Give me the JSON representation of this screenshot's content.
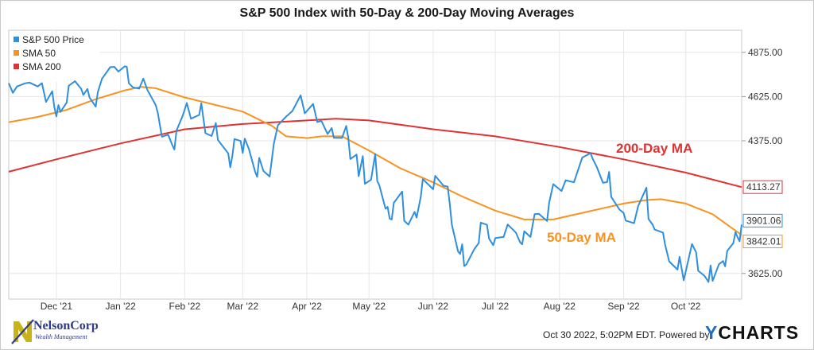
{
  "title": "S&P 500 Index with 50-Day & 200-Day Moving Averages",
  "footer": {
    "timestamp": "Oct 30 2022, 5:02PM EDT.",
    "powered_by": "Powered by",
    "brand_y": "Y",
    "brand_rest": "CHARTS"
  },
  "logo": {
    "name": "NelsonCorp",
    "subtitle": "Wealth Management",
    "icon": "n-logo-icon"
  },
  "chart_data": {
    "type": "line",
    "title": "S&P 500 Index with 50-Day & 200-Day Moving Averages",
    "xlabel": "",
    "ylabel": "",
    "x_range": [
      "2021-11-08",
      "2022-10-28"
    ],
    "ylim": [
      3480,
      5000
    ],
    "y_ticks": [
      3625,
      4375,
      4625,
      4875
    ],
    "y_tick_labels": [
      "3625.00",
      "4375.00",
      "4625.00",
      "4875.00"
    ],
    "x_ticks": [
      {
        "date": "2021-12-01",
        "label": "Dec '21"
      },
      {
        "date": "2022-01-01",
        "label": "Jan '22"
      },
      {
        "date": "2022-02-01",
        "label": "Feb '22"
      },
      {
        "date": "2022-03-01",
        "label": "Mar '22"
      },
      {
        "date": "2022-04-01",
        "label": "Apr '22"
      },
      {
        "date": "2022-05-01",
        "label": "May '22"
      },
      {
        "date": "2022-06-01",
        "label": "Jun '22"
      },
      {
        "date": "2022-07-01",
        "label": "Jul '22"
      },
      {
        "date": "2022-08-01",
        "label": "Aug '22"
      },
      {
        "date": "2022-09-01",
        "label": "Sep '22"
      },
      {
        "date": "2022-10-01",
        "label": "Oct '22"
      }
    ],
    "grid": true,
    "legend_position": "top-left",
    "series": [
      {
        "name": "S&P 500 Price",
        "color": "#2f8fdf",
        "end_label": "3901.06",
        "points": [
          [
            "2021-11-08",
            4701
          ],
          [
            "2021-11-10",
            4646
          ],
          [
            "2021-11-12",
            4682
          ],
          [
            "2021-11-16",
            4700
          ],
          [
            "2021-11-18",
            4704
          ],
          [
            "2021-11-22",
            4682
          ],
          [
            "2021-11-24",
            4701
          ],
          [
            "2021-11-26",
            4595
          ],
          [
            "2021-11-29",
            4655
          ],
          [
            "2021-11-30",
            4567
          ],
          [
            "2021-12-01",
            4513
          ],
          [
            "2021-12-02",
            4577
          ],
          [
            "2021-12-03",
            4538
          ],
          [
            "2021-12-06",
            4591
          ],
          [
            "2021-12-07",
            4686
          ],
          [
            "2021-12-10",
            4712
          ],
          [
            "2021-12-13",
            4668
          ],
          [
            "2021-12-14",
            4634
          ],
          [
            "2021-12-16",
            4668
          ],
          [
            "2021-12-17",
            4620
          ],
          [
            "2021-12-20",
            4568
          ],
          [
            "2021-12-21",
            4649
          ],
          [
            "2021-12-23",
            4725
          ],
          [
            "2021-12-27",
            4791
          ],
          [
            "2021-12-29",
            4793
          ],
          [
            "2021-12-31",
            4766
          ],
          [
            "2022-01-03",
            4796
          ],
          [
            "2022-01-04",
            4793
          ],
          [
            "2022-01-05",
            4700
          ],
          [
            "2022-01-07",
            4677
          ],
          [
            "2022-01-10",
            4670
          ],
          [
            "2022-01-12",
            4726
          ],
          [
            "2022-01-14",
            4662
          ],
          [
            "2022-01-18",
            4577
          ],
          [
            "2022-01-19",
            4533
          ],
          [
            "2022-01-21",
            4398
          ],
          [
            "2022-01-24",
            4410
          ],
          [
            "2022-01-26",
            4350
          ],
          [
            "2022-01-27",
            4326
          ],
          [
            "2022-01-28",
            4432
          ],
          [
            "2022-01-31",
            4516
          ],
          [
            "2022-02-02",
            4589
          ],
          [
            "2022-02-04",
            4500
          ],
          [
            "2022-02-08",
            4521
          ],
          [
            "2022-02-09",
            4587
          ],
          [
            "2022-02-10",
            4504
          ],
          [
            "2022-02-11",
            4418
          ],
          [
            "2022-02-14",
            4402
          ],
          [
            "2022-02-16",
            4475
          ],
          [
            "2022-02-17",
            4380
          ],
          [
            "2022-02-22",
            4304
          ],
          [
            "2022-02-23",
            4225
          ],
          [
            "2022-02-24",
            4289
          ],
          [
            "2022-02-25",
            4385
          ],
          [
            "2022-02-28",
            4374
          ],
          [
            "2022-03-01",
            4306
          ],
          [
            "2022-03-02",
            4387
          ],
          [
            "2022-03-04",
            4329
          ],
          [
            "2022-03-07",
            4201
          ],
          [
            "2022-03-08",
            4171
          ],
          [
            "2022-03-09",
            4278
          ],
          [
            "2022-03-11",
            4204
          ],
          [
            "2022-03-14",
            4173
          ],
          [
            "2022-03-15",
            4262
          ],
          [
            "2022-03-16",
            4357
          ],
          [
            "2022-03-18",
            4463
          ],
          [
            "2022-03-22",
            4512
          ],
          [
            "2022-03-25",
            4543
          ],
          [
            "2022-03-29",
            4632
          ],
          [
            "2022-03-31",
            4530
          ],
          [
            "2022-04-04",
            4583
          ],
          [
            "2022-04-06",
            4481
          ],
          [
            "2022-04-08",
            4488
          ],
          [
            "2022-04-11",
            4413
          ],
          [
            "2022-04-13",
            4447
          ],
          [
            "2022-04-14",
            4392
          ],
          [
            "2022-04-18",
            4391
          ],
          [
            "2022-04-20",
            4459
          ],
          [
            "2022-04-21",
            4394
          ],
          [
            "2022-04-22",
            4272
          ],
          [
            "2022-04-25",
            4297
          ],
          [
            "2022-04-26",
            4175
          ],
          [
            "2022-04-28",
            4288
          ],
          [
            "2022-04-29",
            4132
          ],
          [
            "2022-05-02",
            4155
          ],
          [
            "2022-05-04",
            4300
          ],
          [
            "2022-05-05",
            4147
          ],
          [
            "2022-05-06",
            4123
          ],
          [
            "2022-05-09",
            3991
          ],
          [
            "2022-05-10",
            4001
          ],
          [
            "2022-05-11",
            3935
          ],
          [
            "2022-05-12",
            3930
          ],
          [
            "2022-05-13",
            4024
          ],
          [
            "2022-05-17",
            4088
          ],
          [
            "2022-05-18",
            3923
          ],
          [
            "2022-05-20",
            3901
          ],
          [
            "2022-05-23",
            3973
          ],
          [
            "2022-05-24",
            3941
          ],
          [
            "2022-05-26",
            4058
          ],
          [
            "2022-05-27",
            4158
          ],
          [
            "2022-06-01",
            4101
          ],
          [
            "2022-06-02",
            4177
          ],
          [
            "2022-06-06",
            4121
          ],
          [
            "2022-06-08",
            4116
          ],
          [
            "2022-06-09",
            4018
          ],
          [
            "2022-06-10",
            3901
          ],
          [
            "2022-06-13",
            3750
          ],
          [
            "2022-06-14",
            3735
          ],
          [
            "2022-06-15",
            3790
          ],
          [
            "2022-06-16",
            3667
          ],
          [
            "2022-06-17",
            3675
          ],
          [
            "2022-06-21",
            3765
          ],
          [
            "2022-06-23",
            3796
          ],
          [
            "2022-06-24",
            3912
          ],
          [
            "2022-06-27",
            3900
          ],
          [
            "2022-06-28",
            3822
          ],
          [
            "2022-06-30",
            3785
          ],
          [
            "2022-07-01",
            3825
          ],
          [
            "2022-07-05",
            3831
          ],
          [
            "2022-07-07",
            3902
          ],
          [
            "2022-07-11",
            3855
          ],
          [
            "2022-07-13",
            3801
          ],
          [
            "2022-07-14",
            3790
          ],
          [
            "2022-07-15",
            3863
          ],
          [
            "2022-07-18",
            3831
          ],
          [
            "2022-07-20",
            3960
          ],
          [
            "2022-07-22",
            3962
          ],
          [
            "2022-07-26",
            3921
          ],
          [
            "2022-07-27",
            4024
          ],
          [
            "2022-07-29",
            4130
          ],
          [
            "2022-08-02",
            4091
          ],
          [
            "2022-08-04",
            4152
          ],
          [
            "2022-08-08",
            4140
          ],
          [
            "2022-08-10",
            4210
          ],
          [
            "2022-08-12",
            4280
          ],
          [
            "2022-08-16",
            4305
          ],
          [
            "2022-08-17",
            4274
          ],
          [
            "2022-08-19",
            4228
          ],
          [
            "2022-08-22",
            4138
          ],
          [
            "2022-08-24",
            4141
          ],
          [
            "2022-08-25",
            4199
          ],
          [
            "2022-08-26",
            4058
          ],
          [
            "2022-08-30",
            3986
          ],
          [
            "2022-09-01",
            3967
          ],
          [
            "2022-09-02",
            3924
          ],
          [
            "2022-09-06",
            3909
          ],
          [
            "2022-09-08",
            4006
          ],
          [
            "2022-09-12",
            4110
          ],
          [
            "2022-09-13",
            3933
          ],
          [
            "2022-09-15",
            3901
          ],
          [
            "2022-09-16",
            3873
          ],
          [
            "2022-09-20",
            3856
          ],
          [
            "2022-09-21",
            3790
          ],
          [
            "2022-09-23",
            3693
          ],
          [
            "2022-09-27",
            3647
          ],
          [
            "2022-09-28",
            3719
          ],
          [
            "2022-09-30",
            3586
          ],
          [
            "2022-10-04",
            3791
          ],
          [
            "2022-10-06",
            3745
          ],
          [
            "2022-10-07",
            3640
          ],
          [
            "2022-10-10",
            3612
          ],
          [
            "2022-10-12",
            3577
          ],
          [
            "2022-10-13",
            3670
          ],
          [
            "2022-10-14",
            3583
          ],
          [
            "2022-10-17",
            3677
          ],
          [
            "2022-10-19",
            3695
          ],
          [
            "2022-10-20",
            3665
          ],
          [
            "2022-10-21",
            3752
          ],
          [
            "2022-10-24",
            3797
          ],
          [
            "2022-10-25",
            3859
          ],
          [
            "2022-10-26",
            3830
          ],
          [
            "2022-10-27",
            3807
          ],
          [
            "2022-10-28",
            3901
          ]
        ]
      },
      {
        "name": "SMA 50",
        "color": "#f7931e",
        "end_label": "3842.01",
        "points": [
          [
            "2021-11-08",
            4480
          ],
          [
            "2021-11-22",
            4510
          ],
          [
            "2021-12-06",
            4550
          ],
          [
            "2021-12-20",
            4610
          ],
          [
            "2022-01-03",
            4660
          ],
          [
            "2022-01-11",
            4680
          ],
          [
            "2022-01-18",
            4672
          ],
          [
            "2022-02-01",
            4620
          ],
          [
            "2022-02-15",
            4580
          ],
          [
            "2022-03-01",
            4540
          ],
          [
            "2022-03-15",
            4460
          ],
          [
            "2022-03-22",
            4400
          ],
          [
            "2022-04-01",
            4390
          ],
          [
            "2022-04-08",
            4400
          ],
          [
            "2022-04-18",
            4400
          ],
          [
            "2022-05-01",
            4320
          ],
          [
            "2022-05-16",
            4220
          ],
          [
            "2022-06-01",
            4140
          ],
          [
            "2022-06-15",
            4060
          ],
          [
            "2022-07-01",
            3980
          ],
          [
            "2022-07-15",
            3930
          ],
          [
            "2022-07-29",
            3930
          ],
          [
            "2022-08-15",
            3975
          ],
          [
            "2022-09-01",
            4020
          ],
          [
            "2022-09-12",
            4040
          ],
          [
            "2022-09-19",
            4045
          ],
          [
            "2022-10-01",
            4020
          ],
          [
            "2022-10-14",
            3960
          ],
          [
            "2022-10-28",
            3842
          ]
        ]
      },
      {
        "name": "SMA 200",
        "color": "#e03232",
        "end_label": "4113.27",
        "points": [
          [
            "2021-11-08",
            4200
          ],
          [
            "2021-12-01",
            4270
          ],
          [
            "2022-01-01",
            4360
          ],
          [
            "2022-02-01",
            4440
          ],
          [
            "2022-03-01",
            4470
          ],
          [
            "2022-04-01",
            4490
          ],
          [
            "2022-04-15",
            4500
          ],
          [
            "2022-05-01",
            4490
          ],
          [
            "2022-06-01",
            4440
          ],
          [
            "2022-07-01",
            4400
          ],
          [
            "2022-08-01",
            4340
          ],
          [
            "2022-09-01",
            4270
          ],
          [
            "2022-10-01",
            4195
          ],
          [
            "2022-10-28",
            4113
          ]
        ]
      }
    ],
    "annotations": [
      {
        "text": "200-Day MA",
        "color": "#e03232"
      },
      {
        "text": "50-Day MA",
        "color": "#f7931e"
      }
    ]
  }
}
